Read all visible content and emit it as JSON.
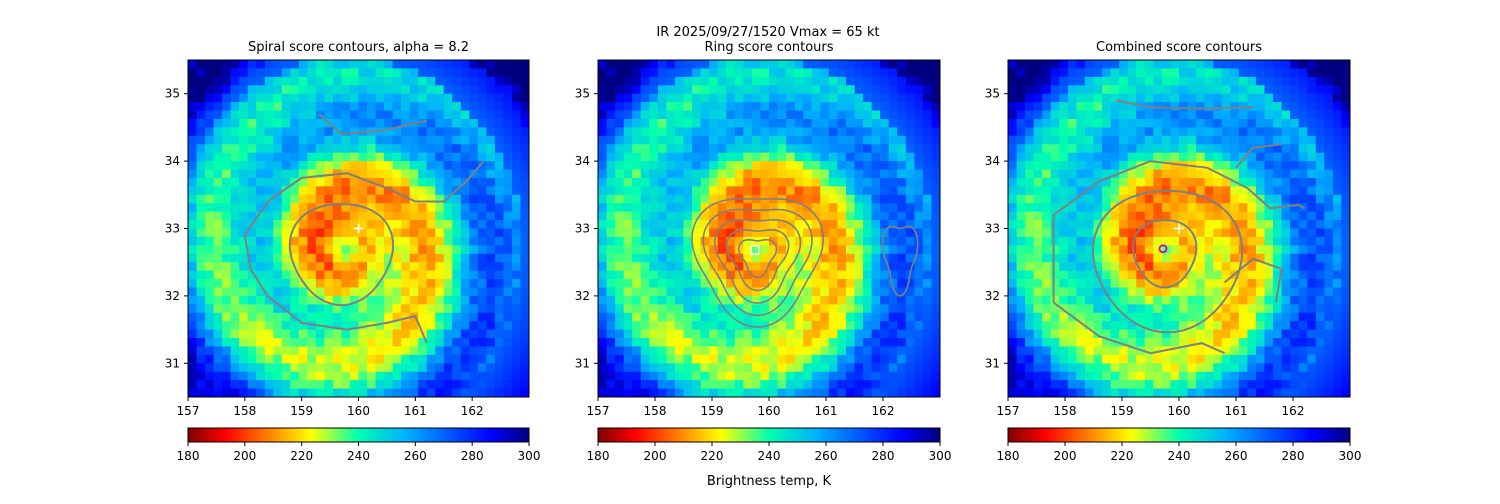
{
  "suptitle": {
    "line1": "IR  2025/09/27/1520    Vmax = 65 kt"
  },
  "colorbar_label": "Brightness temp, K",
  "colors": {
    "contour": "#808080",
    "center_marker": "#ffffff",
    "ring_marker": "#ffffff",
    "combined_marker": "#cc00cc"
  },
  "chart_data": [
    {
      "type": "heatmap",
      "title": "Spiral score contours, alpha =  8.2",
      "xlim": [
        157,
        163
      ],
      "ylim": [
        30.5,
        35.5
      ],
      "x_ticks": [
        "157",
        "158",
        "159",
        "160",
        "161",
        "162"
      ],
      "y_ticks": [
        "31",
        "32",
        "33",
        "34",
        "35"
      ],
      "colorbar": {
        "min": 180,
        "max": 300,
        "ticks": [
          "180",
          "200",
          "220",
          "240",
          "260",
          "280",
          "300"
        ],
        "colormap": "jet_r"
      },
      "storm_center": [
        160,
        33
      ],
      "markers": [
        {
          "symbol": "+",
          "lon": 160.0,
          "lat": 33.0
        }
      ],
      "contours": "spiral"
    },
    {
      "type": "heatmap",
      "title": "Ring score contours",
      "xlim": [
        157,
        163
      ],
      "ylim": [
        30.5,
        35.5
      ],
      "x_ticks": [
        "157",
        "158",
        "159",
        "160",
        "161",
        "162"
      ],
      "y_ticks": [
        "31",
        "32",
        "33",
        "34",
        "35"
      ],
      "colorbar": {
        "min": 180,
        "max": 300,
        "ticks": [
          "180",
          "200",
          "220",
          "240",
          "260",
          "280",
          "300"
        ],
        "colormap": "jet_r"
      },
      "storm_center": [
        160,
        33
      ],
      "markers": [
        {
          "symbol": "square",
          "lon": 159.75,
          "lat": 32.68
        }
      ],
      "contours": "ring"
    },
    {
      "type": "heatmap",
      "title": "Combined score contours",
      "xlim": [
        157,
        163
      ],
      "ylim": [
        30.5,
        35.5
      ],
      "x_ticks": [
        "157",
        "158",
        "159",
        "160",
        "161",
        "162"
      ],
      "y_ticks": [
        "31",
        "32",
        "33",
        "34",
        "35"
      ],
      "colorbar": {
        "min": 180,
        "max": 300,
        "ticks": [
          "180",
          "200",
          "220",
          "240",
          "260",
          "280",
          "300"
        ],
        "colormap": "jet_r"
      },
      "storm_center": [
        160,
        33
      ],
      "markers": [
        {
          "symbol": "+",
          "lon": 160.0,
          "lat": 33.0
        },
        {
          "symbol": "circle",
          "lon": 159.72,
          "lat": 32.7
        }
      ],
      "contours": "combined"
    }
  ]
}
